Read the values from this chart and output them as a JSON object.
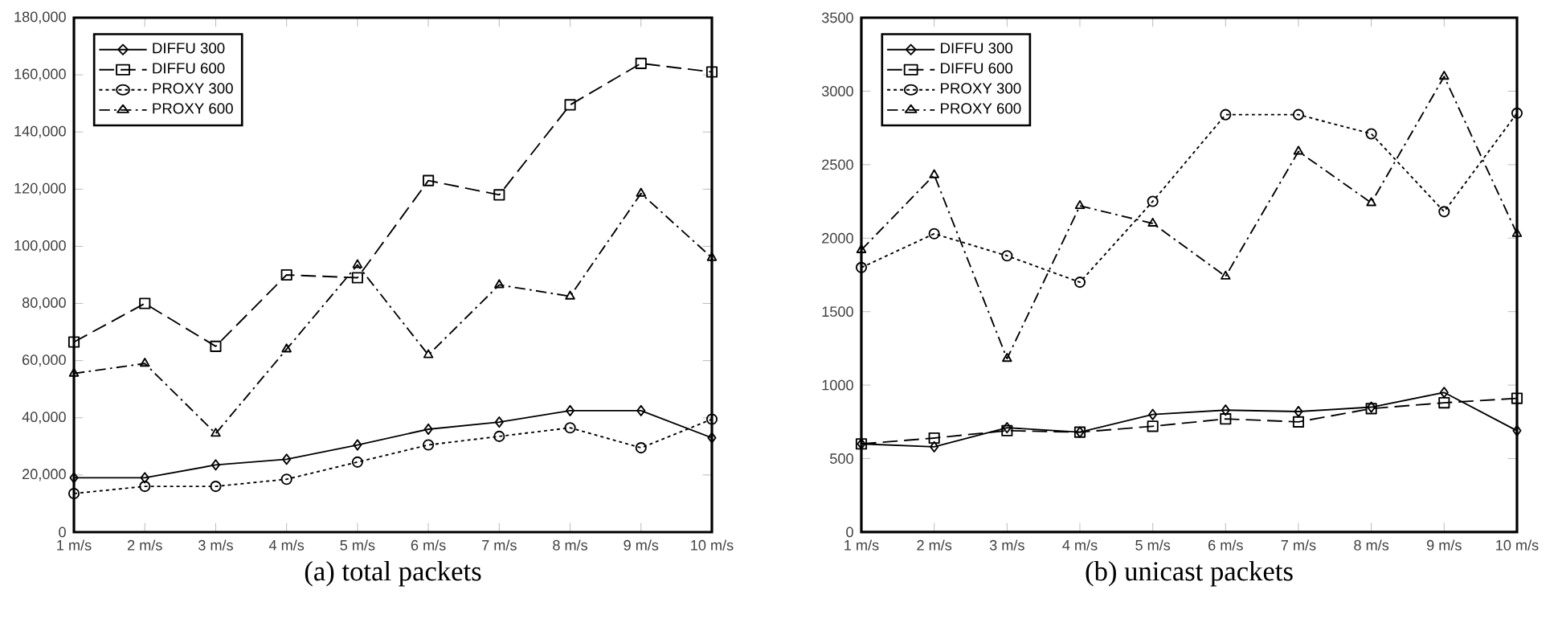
{
  "chart_data": [
    {
      "type": "line",
      "title": "(a)  total packets",
      "categories": [
        "1 m/s",
        "2 m/s",
        "3 m/s",
        "4 m/s",
        "5 m/s",
        "6 m/s",
        "7 m/s",
        "8 m/s",
        "9 m/s",
        "10 m/s"
      ],
      "series": [
        {
          "name": "DIFFU 300",
          "color": "#000000",
          "marker": "diamond",
          "line_style": "solid",
          "values": [
            19000,
            19000,
            23500,
            25500,
            30500,
            36000,
            38500,
            42500,
            42500,
            33000
          ]
        },
        {
          "name": "DIFFU 600",
          "color": "#000000",
          "marker": "square",
          "line_style": "dashed",
          "values": [
            66500,
            80000,
            65000,
            90000,
            89000,
            123000,
            118000,
            149500,
            164000,
            161000
          ]
        },
        {
          "name": "PROXY 300",
          "color": "#000000",
          "marker": "circle",
          "line_style": "dotted",
          "values": [
            13500,
            16000,
            16000,
            18500,
            24500,
            30500,
            33500,
            36500,
            29500,
            39500
          ]
        },
        {
          "name": "PROXY 600",
          "color": "#000000",
          "marker": "triangle",
          "line_style": "dashdot",
          "values": [
            55500,
            59000,
            34500,
            64000,
            93500,
            62000,
            86500,
            82500,
            118500,
            96000
          ]
        }
      ],
      "ylim": [
        0,
        180000
      ],
      "yticks": [
        0,
        {
          "value": 20000,
          "label": "20,000"
        },
        {
          "value": 40000,
          "label": "40,000"
        },
        {
          "value": 60000,
          "label": "60,000"
        },
        {
          "value": 80000,
          "label": "80,000"
        },
        {
          "value": 100000,
          "label": "100,000"
        },
        {
          "value": 120000,
          "label": "120,000"
        },
        {
          "value": 140000,
          "label": "140,000"
        },
        {
          "value": 160000,
          "label": "160,000"
        },
        {
          "value": 180000,
          "label": "180,000"
        }
      ],
      "legend": "top left",
      "grid": false
    },
    {
      "type": "line",
      "title": "(b)  unicast packets",
      "categories": [
        "1 m/s",
        "2 m/s",
        "3 m/s",
        "4 m/s",
        "5 m/s",
        "6 m/s",
        "7 m/s",
        "8 m/s",
        "9 m/s",
        "10 m/s"
      ],
      "series": [
        {
          "name": "DIFFU 300",
          "color": "#000000",
          "marker": "diamond",
          "line_style": "solid",
          "values": [
            600,
            580,
            710,
            680,
            800,
            830,
            820,
            850,
            950,
            690
          ]
        },
        {
          "name": "DIFFU 600",
          "color": "#000000",
          "marker": "square",
          "line_style": "dashed",
          "values": [
            600,
            640,
            690,
            680,
            720,
            770,
            750,
            840,
            880,
            910
          ]
        },
        {
          "name": "PROXY 300",
          "color": "#000000",
          "marker": "circle",
          "line_style": "dotted",
          "values": [
            1800,
            2030,
            1880,
            1700,
            2250,
            2840,
            2840,
            2710,
            2180,
            2850
          ]
        },
        {
          "name": "PROXY 600",
          "color": "#000000",
          "marker": "triangle",
          "line_style": "dashdot",
          "values": [
            1920,
            2430,
            1180,
            2220,
            2100,
            1740,
            2590,
            2240,
            3100,
            2030
          ]
        }
      ],
      "ylim": [
        0,
        3500
      ],
      "yticks": [
        0,
        500,
        1000,
        1500,
        2000,
        2500,
        3000,
        3500
      ],
      "legend": "top left",
      "grid": false
    }
  ]
}
